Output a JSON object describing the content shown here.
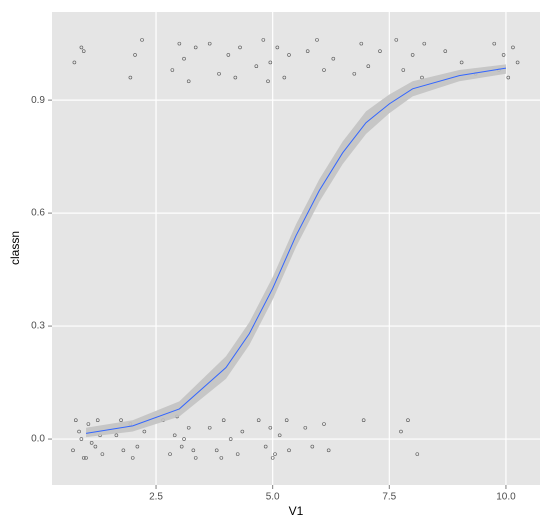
{
  "chart_data": {
    "type": "scatter",
    "x_label": "V1",
    "y_label": "classn",
    "xlim": [
      0.27,
      10.73
    ],
    "ylim": [
      -0.122,
      1.134
    ],
    "xticks": [
      2.5,
      {
        "value": 5,
        "label": "5.0"
      },
      7.5,
      {
        "value": 10,
        "label": "10.0"
      }
    ],
    "yticks": [
      {
        "value": 0,
        "label": "0.0"
      },
      0.3,
      0.6,
      0.9
    ],
    "grid": true,
    "points": {
      "color": "#333333",
      "x": [
        0.72,
        0.85,
        0.95,
        1.05,
        1.12,
        1.25,
        1.35,
        0.78,
        0.9,
        1.2,
        1.3,
        1.0,
        1.65,
        1.8,
        1.95,
        2.1,
        2.25,
        2.0,
        1.75,
        2.65,
        2.8,
        2.9,
        3.05,
        3.2,
        3.35,
        2.95,
        3.1,
        3.3,
        3.65,
        3.8,
        3.95,
        4.1,
        4.25,
        4.35,
        3.9,
        4.7,
        4.85,
        4.95,
        5.05,
        5.15,
        5.3,
        5.35,
        5.0,
        5.7,
        5.85,
        6.1,
        6.2,
        6.95,
        7.75,
        7.9,
        8.1,
        0.75,
        0.9,
        0.95,
        1.95,
        2.2,
        2.05,
        2.85,
        3.0,
        3.2,
        3.35,
        3.1,
        3.65,
        3.85,
        4.05,
        4.3,
        4.2,
        4.65,
        4.8,
        4.95,
        5.1,
        5.25,
        5.35,
        4.9,
        5.75,
        5.95,
        6.1,
        6.3,
        6.75,
        6.9,
        7.05,
        7.3,
        7.65,
        7.8,
        8.0,
        8.2,
        8.25,
        8.7,
        9.05,
        9.35,
        9.75,
        9.85,
        9.95,
        10.05,
        10.15,
        10.25
      ],
      "y": [
        -0.03,
        0.02,
        -0.05,
        0.04,
        -0.01,
        0.05,
        -0.04,
        0.05,
        0.0,
        -0.02,
        0.01,
        -0.05,
        0.01,
        -0.03,
        0.04,
        -0.02,
        0.02,
        -0.05,
        0.05,
        0.05,
        -0.04,
        0.01,
        -0.02,
        0.03,
        -0.05,
        0.06,
        0.0,
        -0.03,
        0.03,
        -0.03,
        0.05,
        0.0,
        -0.04,
        0.02,
        -0.05,
        0.05,
        -0.02,
        0.03,
        -0.04,
        0.01,
        0.05,
        -0.03,
        -0.05,
        0.03,
        -0.02,
        0.04,
        -0.03,
        0.05,
        0.02,
        0.05,
        -0.04,
        1.0,
        1.04,
        1.03,
        0.96,
        1.06,
        1.02,
        0.98,
        1.05,
        0.95,
        1.04,
        1.01,
        1.05,
        0.97,
        1.02,
        1.04,
        0.96,
        0.99,
        1.06,
        1.0,
        1.04,
        0.96,
        1.02,
        0.95,
        1.03,
        1.06,
        0.98,
        1.01,
        0.97,
        1.05,
        0.99,
        1.03,
        1.06,
        0.98,
        1.02,
        0.96,
        1.05,
        1.03,
        1.0,
        0.97,
        1.05,
        0.98,
        1.02,
        0.96,
        1.04,
        1.0
      ]
    },
    "smooth": {
      "color": "#3366ff",
      "band_color": "#c2c2c2",
      "x": [
        1,
        2,
        3,
        4,
        4.5,
        5,
        5.5,
        6,
        6.5,
        7,
        7.5,
        8,
        9,
        10
      ],
      "y": [
        0.015,
        0.035,
        0.08,
        0.19,
        0.28,
        0.4,
        0.54,
        0.66,
        0.76,
        0.84,
        0.89,
        0.93,
        0.965,
        0.985
      ],
      "lower": [
        0.005,
        0.02,
        0.06,
        0.16,
        0.25,
        0.37,
        0.51,
        0.63,
        0.73,
        0.81,
        0.865,
        0.91,
        0.95,
        0.97
      ],
      "upper": [
        0.03,
        0.05,
        0.1,
        0.22,
        0.31,
        0.43,
        0.57,
        0.69,
        0.79,
        0.87,
        0.915,
        0.95,
        0.98,
        0.995
      ]
    }
  }
}
